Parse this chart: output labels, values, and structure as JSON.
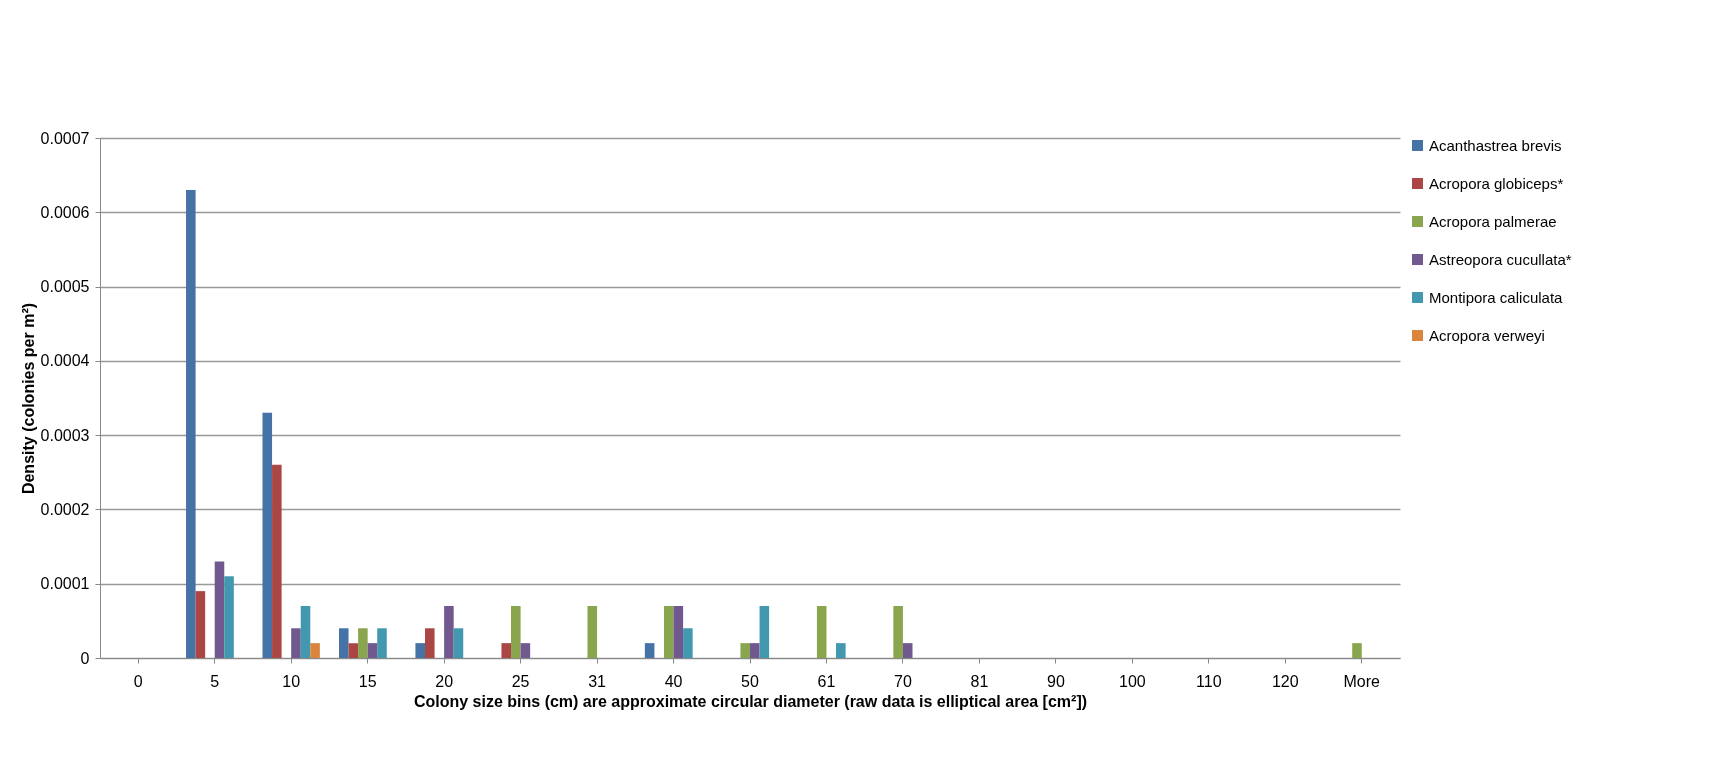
{
  "chart_data": {
    "type": "bar",
    "xlabel": "Colony size bins (cm) are approximate circular diameter (raw data is elliptical area [cm²])",
    "ylabel": "Density  (colonies per m²)",
    "categories": [
      "0",
      "5",
      "10",
      "15",
      "20",
      "25",
      "31",
      "40",
      "50",
      "61",
      "70",
      "81",
      "90",
      "100",
      "110",
      "120",
      "More"
    ],
    "series": [
      {
        "name": "Acanthastrea brevis",
        "color": "#4572a7",
        "values": [
          0,
          0.00063,
          0.00033,
          4e-05,
          2e-05,
          0,
          0,
          2e-05,
          0,
          0,
          0,
          0,
          0,
          0,
          0,
          0,
          0
        ]
      },
      {
        "name": "Acropora globiceps*",
        "color": "#aa4643",
        "values": [
          0,
          9e-05,
          0.00026,
          2e-05,
          4e-05,
          2e-05,
          0,
          0,
          0,
          0,
          0,
          0,
          0,
          0,
          0,
          0,
          0
        ]
      },
      {
        "name": "Acropora palmerae",
        "color": "#89a54e",
        "values": [
          0,
          0,
          0,
          4e-05,
          0,
          7e-05,
          7e-05,
          7e-05,
          2e-05,
          7e-05,
          7e-05,
          0,
          0,
          0,
          0,
          0,
          2e-05
        ]
      },
      {
        "name": "Astreopora cucullata*",
        "color": "#71588f",
        "values": [
          0,
          0.00013,
          4e-05,
          2e-05,
          7e-05,
          2e-05,
          0,
          7e-05,
          2e-05,
          0,
          2e-05,
          0,
          0,
          0,
          0,
          0,
          0
        ]
      },
      {
        "name": "Montipora caliculata",
        "color": "#4198af",
        "values": [
          0,
          0.00011,
          7e-05,
          4e-05,
          4e-05,
          0,
          0,
          4e-05,
          7e-05,
          2e-05,
          0,
          0,
          0,
          0,
          0,
          0,
          0
        ]
      },
      {
        "name": "Acropora verweyi",
        "color": "#db843d",
        "values": [
          0,
          0,
          2e-05,
          0,
          0,
          0,
          0,
          0,
          0,
          0,
          0,
          0,
          0,
          0,
          0,
          0,
          0
        ]
      }
    ],
    "ylim": [
      0,
      0.0007
    ],
    "yticks": [
      0,
      0.0001,
      0.0002,
      0.0003,
      0.0004,
      0.0005,
      0.0006,
      0.0007
    ],
    "grid": "y",
    "legend": "right"
  }
}
